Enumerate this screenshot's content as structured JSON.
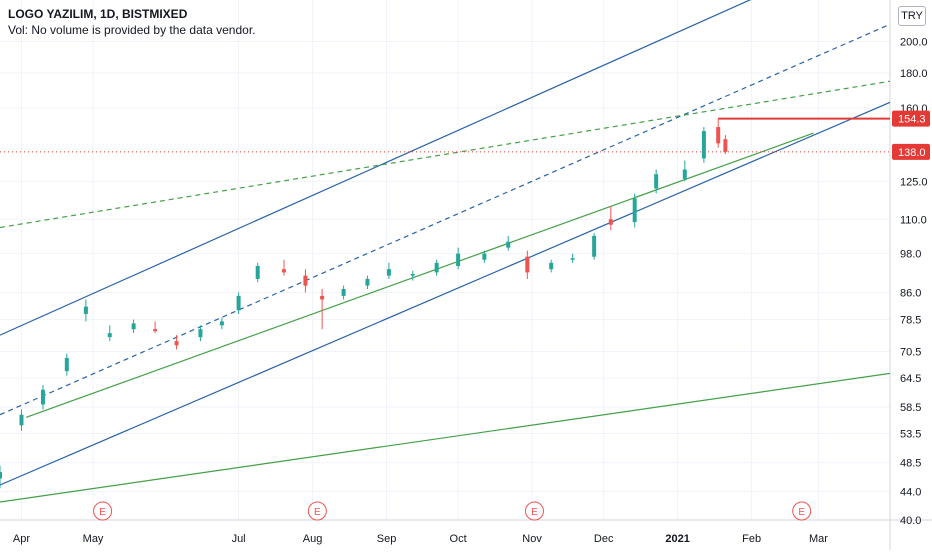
{
  "header": {
    "title": "LOGO YAZILIM, 1D, BISTMIXED",
    "volume_note": "Vol: No volume is provided by the data vendor."
  },
  "currency_button": "TRY",
  "colors": {
    "up": "#26a69a",
    "down": "#ef5350",
    "channel_blue": "#2962a8",
    "trend_green": "#43a047",
    "price_red": "#e53935",
    "earnings": "#ef5350"
  },
  "earnings_marker_label": "E",
  "chart_data": {
    "type": "candlestick",
    "title": "LOGO YAZILIM, 1D, BISTMIXED",
    "y_scale": "log",
    "ylim": [
      40,
      230
    ],
    "xlim": [
      "2020-03-23",
      "2021-03-31"
    ],
    "y_ticks": [
      "200.0",
      "180.0",
      "160.0",
      "125.0",
      "110.0",
      "98.0",
      "86.0",
      "78.5",
      "70.5",
      "64.5",
      "58.5",
      "53.5",
      "48.5",
      "44.0",
      "40.0"
    ],
    "x_ticks": [
      {
        "label": "Apr",
        "date": "2020-04-01"
      },
      {
        "label": "May",
        "date": "2020-05-01"
      },
      {
        "label": "Jul",
        "date": "2020-07-01"
      },
      {
        "label": "Aug",
        "date": "2020-08-01"
      },
      {
        "label": "Sep",
        "date": "2020-09-01"
      },
      {
        "label": "Oct",
        "date": "2020-10-01"
      },
      {
        "label": "Nov",
        "date": "2020-11-01"
      },
      {
        "label": "Dec",
        "date": "2020-12-01"
      },
      {
        "label": "2021",
        "date": "2021-01-01",
        "bold": true
      },
      {
        "label": "Feb",
        "date": "2021-02-01"
      },
      {
        "label": "Mar",
        "date": "2021-03-01"
      }
    ],
    "price_labels": [
      {
        "value": "154.3",
        "price": 154.3,
        "style": "solid",
        "line_from": "2021-01-18"
      },
      {
        "value": "138.0",
        "price": 138.0,
        "style": "dotted"
      }
    ],
    "earnings_dates": [
      "2020-05-05",
      "2020-08-03",
      "2020-11-02",
      "2021-02-22"
    ],
    "trend_lines": [
      {
        "name": "channel-upper",
        "color": "blue",
        "style": "solid",
        "p1": [
          "2020-03-23",
          74.5
        ],
        "p2": [
          "2021-03-31",
          284
        ]
      },
      {
        "name": "channel-middle",
        "color": "blue",
        "style": "dashed",
        "p1": [
          "2020-03-23",
          57
        ],
        "p2": [
          "2021-03-31",
          212
        ]
      },
      {
        "name": "channel-lower",
        "color": "blue",
        "style": "solid",
        "p1": [
          "2020-03-23",
          45
        ],
        "p2": [
          "2021-03-31",
          163
        ]
      },
      {
        "name": "support-green",
        "color": "green",
        "style": "solid",
        "p1": [
          "2020-04-03",
          56.5
        ],
        "p2": [
          "2021-02-27",
          147
        ]
      },
      {
        "name": "resistance-green",
        "color": "green",
        "style": "dashed",
        "p1": [
          "2020-03-23",
          107
        ],
        "p2": [
          "2021-03-31",
          175
        ]
      },
      {
        "name": "long-green",
        "color": "green",
        "style": "solid",
        "p1": [
          "2020-03-23",
          42.5
        ],
        "p2": [
          "2021-03-31",
          65.5
        ]
      }
    ],
    "series": [
      {
        "name": "",
        "points": [
          {
            "d": "2020-03-23",
            "o": 46,
            "h": 48,
            "l": 44.5,
            "c": 47
          },
          {
            "d": "2020-04-01",
            "o": 55,
            "h": 58,
            "l": 54,
            "c": 57
          },
          {
            "d": "2020-04-10",
            "o": 59,
            "h": 63,
            "l": 58,
            "c": 62
          },
          {
            "d": "2020-04-20",
            "o": 66,
            "h": 70,
            "l": 65,
            "c": 69
          },
          {
            "d": "2020-04-28",
            "o": 80,
            "h": 84,
            "l": 78,
            "c": 82
          },
          {
            "d": "2020-05-08",
            "o": 74,
            "h": 77,
            "l": 73,
            "c": 75
          },
          {
            "d": "2020-05-18",
            "o": 76,
            "h": 78.5,
            "l": 75,
            "c": 77.5
          },
          {
            "d": "2020-05-27",
            "o": 76,
            "h": 78,
            "l": 75,
            "c": 75.5
          },
          {
            "d": "2020-06-05",
            "o": 73,
            "h": 74.5,
            "l": 71,
            "c": 72
          },
          {
            "d": "2020-06-15",
            "o": 74,
            "h": 77,
            "l": 73,
            "c": 76
          },
          {
            "d": "2020-06-24",
            "o": 77,
            "h": 79,
            "l": 76,
            "c": 78
          },
          {
            "d": "2020-07-01",
            "o": 81,
            "h": 86,
            "l": 80,
            "c": 85
          },
          {
            "d": "2020-07-09",
            "o": 90,
            "h": 95,
            "l": 89,
            "c": 94
          },
          {
            "d": "2020-07-20",
            "o": 93,
            "h": 96,
            "l": 91,
            "c": 92
          },
          {
            "d": "2020-07-29",
            "o": 91,
            "h": 93,
            "l": 86,
            "c": 88
          },
          {
            "d": "2020-08-05",
            "o": 85,
            "h": 87,
            "l": 76,
            "c": 84
          },
          {
            "d": "2020-08-14",
            "o": 85,
            "h": 88,
            "l": 84,
            "c": 87
          },
          {
            "d": "2020-08-24",
            "o": 88,
            "h": 91,
            "l": 87,
            "c": 90
          },
          {
            "d": "2020-09-02",
            "o": 91,
            "h": 95,
            "l": 90,
            "c": 93
          },
          {
            "d": "2020-09-12",
            "o": 91,
            "h": 92.5,
            "l": 89.5,
            "c": 91.5
          },
          {
            "d": "2020-09-22",
            "o": 92,
            "h": 96,
            "l": 91,
            "c": 95
          },
          {
            "d": "2020-10-01",
            "o": 94,
            "h": 100,
            "l": 93,
            "c": 98
          },
          {
            "d": "2020-10-12",
            "o": 96,
            "h": 99,
            "l": 95,
            "c": 98
          },
          {
            "d": "2020-10-22",
            "o": 100,
            "h": 104,
            "l": 99,
            "c": 102
          },
          {
            "d": "2020-10-30",
            "o": 97,
            "h": 99,
            "l": 90,
            "c": 92
          },
          {
            "d": "2020-11-09",
            "o": 93,
            "h": 96,
            "l": 92,
            "c": 95
          },
          {
            "d": "2020-11-18",
            "o": 96,
            "h": 98,
            "l": 95,
            "c": 96.5
          },
          {
            "d": "2020-11-27",
            "o": 97,
            "h": 105,
            "l": 96,
            "c": 104
          },
          {
            "d": "2020-12-04",
            "o": 110,
            "h": 115,
            "l": 106,
            "c": 108
          },
          {
            "d": "2020-12-14",
            "o": 109,
            "h": 120,
            "l": 107,
            "c": 118
          },
          {
            "d": "2020-12-23",
            "o": 122,
            "h": 130,
            "l": 120,
            "c": 128
          },
          {
            "d": "2021-01-04",
            "o": 126,
            "h": 134,
            "l": 125,
            "c": 130
          },
          {
            "d": "2021-01-12",
            "o": 135,
            "h": 150,
            "l": 133,
            "c": 148
          },
          {
            "d": "2021-01-18",
            "o": 150,
            "h": 154.3,
            "l": 140,
            "c": 142
          },
          {
            "d": "2021-01-21",
            "o": 144,
            "h": 146,
            "l": 137,
            "c": 138
          }
        ]
      }
    ]
  }
}
